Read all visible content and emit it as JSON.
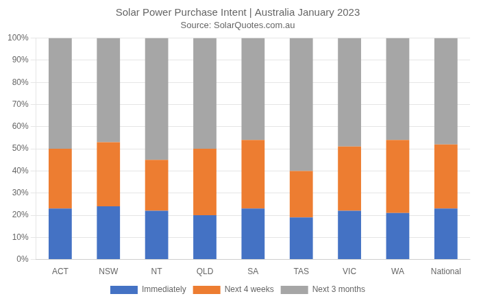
{
  "chart_data": {
    "type": "bar",
    "title": "Solar Power Purchase Intent | Australia January 2023",
    "subtitle": "Source: SolarQuotes.com.au",
    "categories": [
      "ACT",
      "NSW",
      "NT",
      "QLD",
      "SA",
      "TAS",
      "VIC",
      "WA",
      "National"
    ],
    "series": [
      {
        "name": "Immediately",
        "color": "#4472c4",
        "values": [
          23,
          24,
          22,
          20,
          23,
          19,
          22,
          21,
          23
        ]
      },
      {
        "name": "Next 4 weeks",
        "color": "#ed7d31",
        "values": [
          27,
          29,
          23,
          30,
          31,
          21,
          29,
          33,
          29
        ]
      },
      {
        "name": "Next 3 months",
        "color": "#a6a6a6",
        "values": [
          50,
          47,
          55,
          50,
          46,
          60,
          49,
          46,
          48
        ]
      }
    ],
    "stacked": true,
    "ylim": [
      0,
      100
    ],
    "yticks": [
      {
        "value": 0,
        "label": "0%"
      },
      {
        "value": 10,
        "label": "10%"
      },
      {
        "value": 20,
        "label": "20%"
      },
      {
        "value": 30,
        "label": "30%"
      },
      {
        "value": 40,
        "label": "40%"
      },
      {
        "value": 50,
        "label": "50%"
      },
      {
        "value": 60,
        "label": "60%"
      },
      {
        "value": 70,
        "label": "70%"
      },
      {
        "value": 80,
        "label": "80%"
      },
      {
        "value": 90,
        "label": "90%"
      },
      {
        "value": 100,
        "label": "100%"
      }
    ],
    "grid": true,
    "legend": "bottom"
  }
}
